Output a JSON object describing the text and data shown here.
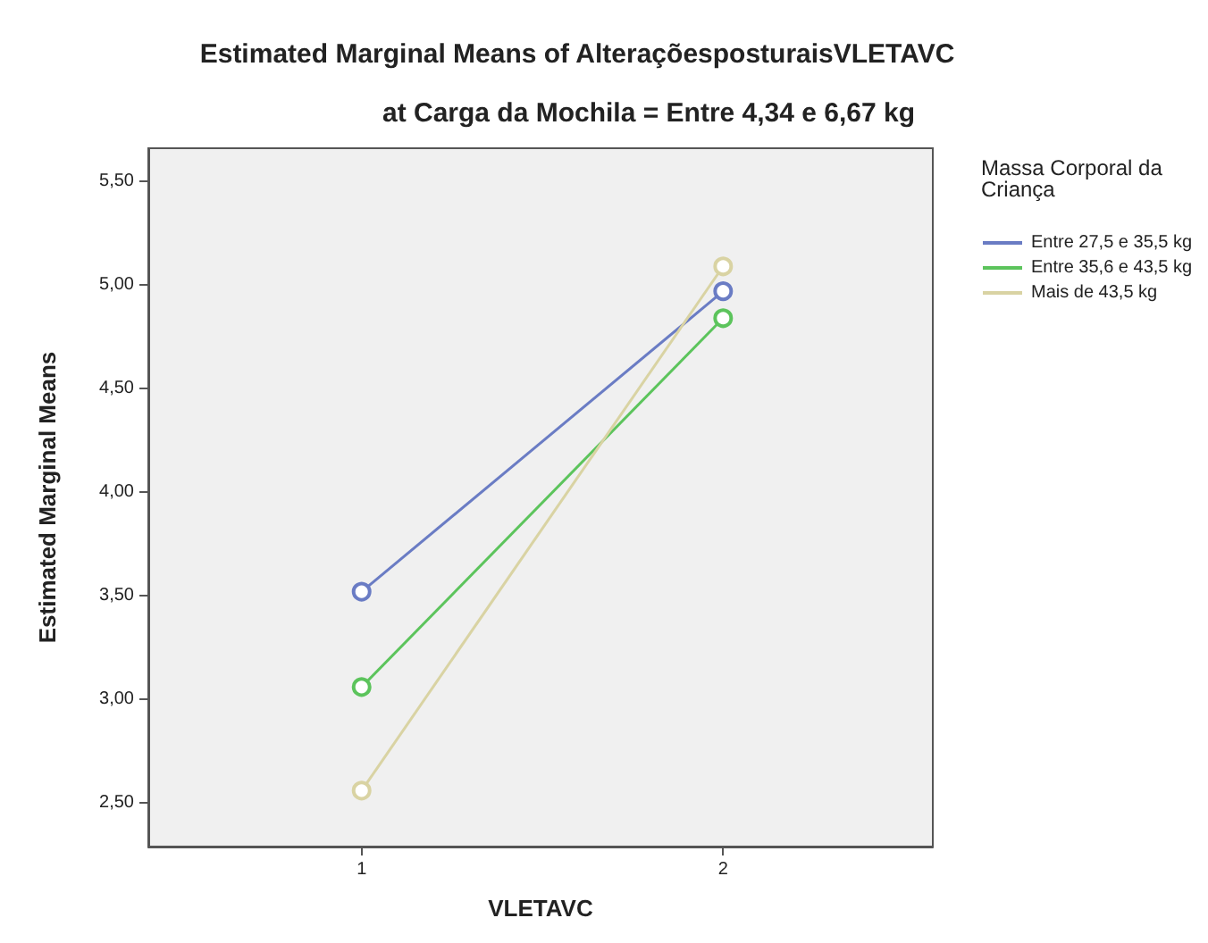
{
  "chart_data": {
    "type": "line",
    "title": "Estimated Marginal Means of AlteraçõesposturaisVLETAVC",
    "subtitle": "at Carga da Mochila = Entre 4,34 e 6,67 kg",
    "xlabel": "VLETAVC",
    "ylabel": "Estimated Marginal Means",
    "legend_title": "Massa Corporal da Criança",
    "x": [
      1,
      2
    ],
    "series": [
      {
        "name": "Entre 27,5 e 35,5 kg",
        "color": "#6a7cc4",
        "values": [
          3.52,
          4.97
        ]
      },
      {
        "name": "Entre 35,6 e 43,5 kg",
        "color": "#5cc45c",
        "values": [
          3.06,
          4.84
        ]
      },
      {
        "name": "Mais de 43,5 kg",
        "color": "#d9d3a3",
        "values": [
          2.56,
          5.09
        ]
      }
    ],
    "xlim": [
      0.41,
      2.58
    ],
    "xticks": [
      1,
      2
    ],
    "ylim": [
      2.29,
      5.66
    ],
    "yticks": [
      {
        "value": 2.5,
        "label": "2,50"
      },
      {
        "value": 3,
        "label": "3,00"
      },
      {
        "value": 3.5,
        "label": "3,50"
      },
      {
        "value": 4,
        "label": "4,00"
      },
      {
        "value": 4.5,
        "label": "4,50"
      },
      {
        "value": 5,
        "label": "5,00"
      },
      {
        "value": 5.5,
        "label": "5,50"
      }
    ],
    "grid": false,
    "legend": "top right",
    "marker": "circle",
    "line_style": "solid"
  }
}
